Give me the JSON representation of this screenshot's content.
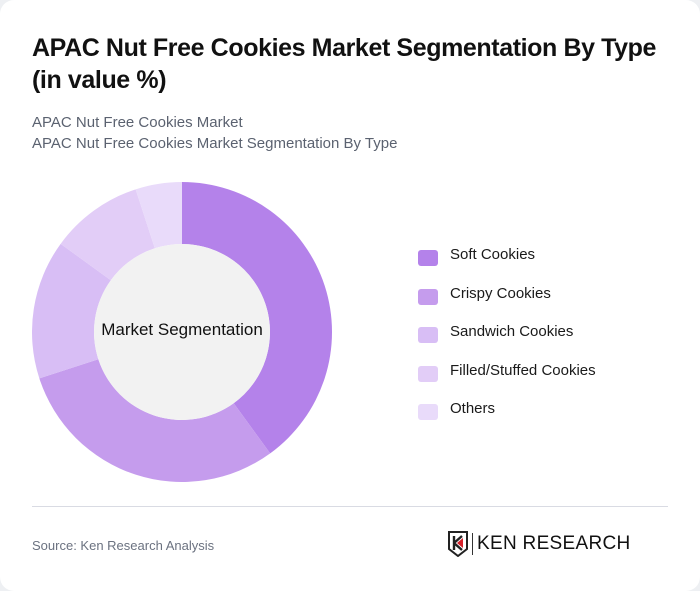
{
  "header": {
    "title": "APAC Nut Free Cookies Market Segmentation By Type (in value %)",
    "subtitle_1": "APAC Nut Free Cookies Market",
    "subtitle_2": "APAC Nut Free Cookies Market Segmentation By Type"
  },
  "chart": {
    "center_label": "Market Segmentation"
  },
  "legend": {
    "items": [
      {
        "label": "Soft Cookies",
        "color": "#b482ea"
      },
      {
        "label": "Crispy Cookies",
        "color": "#c59ced"
      },
      {
        "label": "Sandwich Cookies",
        "color": "#d8bef5"
      },
      {
        "label": "Filled/Stuffed Cookies",
        "color": "#e2cdf7"
      },
      {
        "label": "Others",
        "color": "#e9dbfa"
      }
    ]
  },
  "footer": {
    "source": "Source: Ken Research Analysis",
    "logo_text": "KEN RESEARCH"
  },
  "chart_data": {
    "type": "pie",
    "subtype": "donut",
    "title": "APAC Nut Free Cookies Market Segmentation By Type (in value %)",
    "center_label": "Market Segmentation",
    "categories": [
      "Soft Cookies",
      "Crispy Cookies",
      "Sandwich Cookies",
      "Filled/Stuffed Cookies",
      "Others"
    ],
    "values": [
      40,
      30,
      15,
      10,
      5
    ],
    "colors": [
      "#b482ea",
      "#c59ced",
      "#d8bef5",
      "#e2cdf7",
      "#e9dbfa"
    ],
    "legend_position": "right",
    "unit": "%"
  }
}
